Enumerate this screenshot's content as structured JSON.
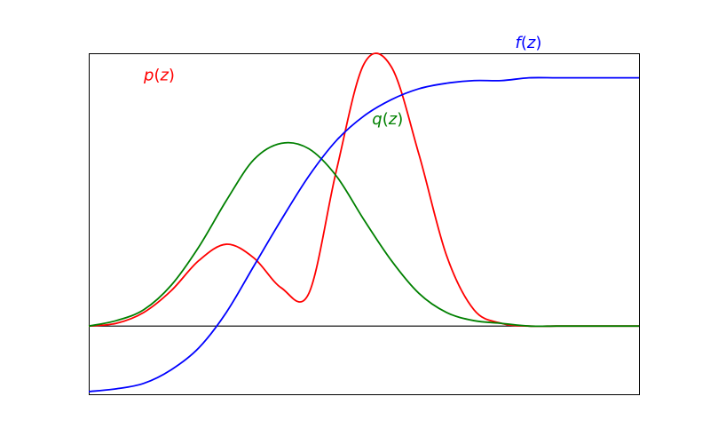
{
  "colors": {
    "p": "#ff0000",
    "q": "#008000",
    "f": "#0000ff",
    "axes": "#000000",
    "background": "#ffffff"
  },
  "chart_data": {
    "type": "line",
    "title": "",
    "xlabel": "",
    "ylabel": "",
    "xlim": [
      0,
      100
    ],
    "ylim": [
      -0.25,
      1.0
    ],
    "grid": false,
    "legend": "none",
    "baseline_y": 0,
    "x": [
      0,
      5,
      10,
      15,
      20,
      25,
      30,
      35,
      40,
      45,
      50,
      55,
      60,
      65,
      70,
      75,
      80,
      85,
      90,
      95,
      100
    ],
    "series": [
      {
        "key": "p",
        "label_fn": "p",
        "label_var": "z",
        "values": [
          0.0,
          0.01,
          0.05,
          0.13,
          0.24,
          0.3,
          0.25,
          0.14,
          0.12,
          0.57,
          0.96,
          0.95,
          0.63,
          0.26,
          0.06,
          0.01,
          0.0,
          0.0,
          0.0,
          0.0,
          0.0
        ]
      },
      {
        "key": "q",
        "label_fn": "q",
        "label_var": "z",
        "values": [
          0.0,
          0.02,
          0.06,
          0.15,
          0.29,
          0.46,
          0.61,
          0.67,
          0.65,
          0.55,
          0.39,
          0.24,
          0.12,
          0.05,
          0.02,
          0.01,
          0.0,
          0.0,
          0.0,
          0.0,
          0.0
        ]
      },
      {
        "key": "f",
        "label_fn": "f",
        "label_var": "z",
        "values": [
          -0.24,
          -0.23,
          -0.21,
          -0.16,
          -0.08,
          0.05,
          0.22,
          0.39,
          0.55,
          0.68,
          0.77,
          0.83,
          0.87,
          0.89,
          0.9,
          0.9,
          0.91,
          0.91,
          0.91,
          0.91,
          0.91
        ]
      }
    ],
    "annotations": [
      {
        "series": "p",
        "text_fn": "p",
        "text_var": "z",
        "at_x": 10,
        "at_y": 0.9
      },
      {
        "series": "q",
        "text_fn": "q",
        "text_var": "z",
        "at_x": 51.5,
        "at_y": 0.74
      },
      {
        "series": "f",
        "text_fn": "f",
        "text_var": "z",
        "at_x": 77.5,
        "at_y": 1.02
      }
    ]
  }
}
